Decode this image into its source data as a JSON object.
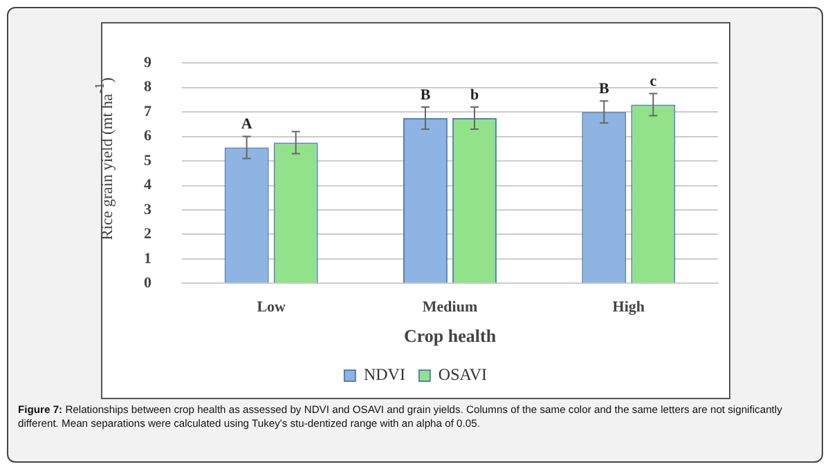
{
  "chart_data": {
    "type": "bar",
    "xlabel": "Crop health",
    "ylabel": "Rice grain yield (mt ha$^{-1}$)",
    "categories": [
      "Low",
      "Medium",
      "High"
    ],
    "series": [
      {
        "name": "NDVI",
        "color": "#8db4e2",
        "values": [
          5.55,
          6.75,
          7.0
        ],
        "errors": [
          0.45,
          0.45,
          0.45
        ],
        "value_labels": [
          "A",
          "B",
          "B"
        ]
      },
      {
        "name": "OSAVI",
        "color": "#92e28a",
        "values": [
          5.75,
          6.75,
          7.3
        ],
        "errors": [
          0.45,
          0.45,
          0.45
        ],
        "value_labels": [
          null,
          "b",
          "c"
        ]
      }
    ],
    "ylim": [
      0,
      9
    ],
    "yticks": [
      0,
      1,
      2,
      3,
      4,
      5,
      6,
      7,
      8,
      9
    ],
    "grid": "y",
    "legend": "bottom",
    "annotations": [
      "Figure 7: Relationships between crop health as assessed by NDVI and OSAVI and grain yields. Columns of the same color and the same letters are not significantly different. Mean separations were calculated using Tukey's stu-dentized range with an alpha of 0.05."
    ]
  }
}
